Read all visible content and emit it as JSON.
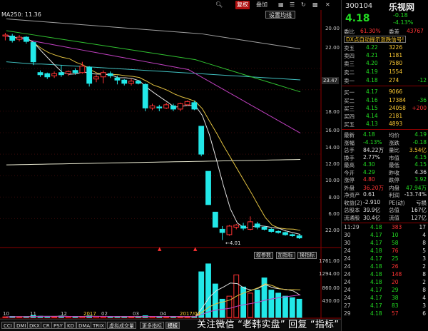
{
  "toolbar": {
    "search_icon": "search-icon",
    "fuquan": "复权",
    "diejia": "叠加",
    "chart_icon": "candle-chart-icon",
    "period_icon": "list-icon",
    "refresh_icon": "refresh-icon",
    "grid_icon": "grid-icon"
  },
  "ma_label": "MA250: 11.36",
  "dropdown_label": "设置均线",
  "price_tag": "23.47",
  "y_ticks": [
    "20.00",
    "18.00",
    "16.00",
    "14.00",
    "12.00",
    "10.00",
    "8.00",
    "6.00",
    "22.00"
  ],
  "arrow_label": "4.01",
  "subchart_buttons": [
    "叙参数",
    "加指标",
    "换指标"
  ],
  "vol_ticks": [
    "1761.00",
    "1294.00",
    "860.00",
    "430.00"
  ],
  "x_labels": [
    "10",
    "11",
    "12",
    "2017",
    "02",
    "03",
    "04",
    "2017/04"
  ],
  "tabs": [
    "CCI",
    "DMI",
    "DKX",
    "CR",
    "PSY",
    "KD",
    "DMA",
    "TRIX",
    "虚拟成交量",
    "更多指标",
    "模板"
  ],
  "watermark": "关注微信 “老韩实盘” 回复 “指标” 免费领",
  "quote": {
    "code": "300104",
    "logo": "乐视网",
    "price": "4.18",
    "change": "-0.18",
    "change_pct": "-4.13%",
    "ratio_label": "委比",
    "ratio_value": "61.30%",
    "diff_label": "委差",
    "diff_value": "43767",
    "dxx_label": "DX点自动提示涨跌信号!",
    "asks": [
      {
        "label": "卖五",
        "price": "4.22",
        "vol": "3226",
        "delta": ""
      },
      {
        "label": "卖四",
        "price": "4.21",
        "vol": "1181",
        "delta": ""
      },
      {
        "label": "卖三",
        "price": "4.20",
        "vol": "7580",
        "delta": ""
      },
      {
        "label": "卖二",
        "price": "4.19",
        "vol": "1554",
        "delta": ""
      },
      {
        "label": "卖一",
        "price": "4.18",
        "vol": "274",
        "delta": "-12"
      }
    ],
    "bids": [
      {
        "label": "买一",
        "price": "4.17",
        "vol": "9066",
        "delta": ""
      },
      {
        "label": "买二",
        "price": "4.16",
        "vol": "17384",
        "delta": "-36"
      },
      {
        "label": "买三",
        "price": "4.15",
        "vol": "24058",
        "delta": "+200"
      },
      {
        "label": "买四",
        "price": "4.14",
        "vol": "2181",
        "delta": ""
      },
      {
        "label": "买五",
        "price": "4.13",
        "vol": "4893",
        "delta": ""
      }
    ],
    "stats": [
      {
        "l1": "最新",
        "v1": "4.18",
        "l2": "均价",
        "v2": "4.19",
        "c1": "#22dd22",
        "c2": "#22dd22"
      },
      {
        "l1": "涨幅",
        "v1": "-4.13%",
        "l2": "涨跌",
        "v2": "-0.18",
        "c1": "#22dd22",
        "c2": "#22dd22"
      },
      {
        "l1": "总手",
        "v1": "84.22万",
        "l2": "量比",
        "v2": "3.54亿",
        "c1": "#e0e0e0",
        "c2": "#ffcc33"
      },
      {
        "l1": "换手",
        "v1": "2.77%",
        "l2": "市值",
        "v2": "4.15",
        "c1": "#e0e0e0",
        "c2": "#22dd22"
      },
      {
        "l1": "最高",
        "v1": "4.30",
        "l2": "最低",
        "v2": "4.15",
        "c1": "#22dd22",
        "c2": "#22dd22"
      },
      {
        "l1": "今开",
        "v1": "4.29",
        "l2": "昨收",
        "v2": "4.36",
        "c1": "#22dd22",
        "c2": "#e0e0e0"
      },
      {
        "l1": "涨停",
        "v1": "4.80",
        "l2": "跌停",
        "v2": "3.92",
        "c1": "#ff3333",
        "c2": "#22dd22"
      },
      {
        "l1": "外盘",
        "v1": "36.20万",
        "l2": "内盘",
        "v2": "47.94万",
        "c1": "#ff3333",
        "c2": "#22dd22"
      },
      {
        "l1": "净资产",
        "v1": "0.61",
        "l2": "利润",
        "v2": "-13.74%",
        "c1": "#e0e0e0",
        "c2": "#e0e0e0"
      },
      {
        "l1": "收益(2)",
        "v1": "-2.910",
        "l2": "PE(动)",
        "v2": "亏损",
        "c1": "#e0e0e0",
        "c2": "#e0e0e0"
      },
      {
        "l1": "总股本",
        "v1": "39.9亿",
        "l2": "总值",
        "v2": "167亿",
        "c1": "#e0e0e0",
        "c2": "#e0e0e0"
      },
      {
        "l1": "流通股",
        "v1": "30.4亿",
        "l2": "流值",
        "v2": "127亿",
        "c1": "#e0e0e0",
        "c2": "#e0e0e0"
      }
    ],
    "ticks": [
      {
        "time": "11:29",
        "price": "4.18",
        "vol": "383",
        "n": "17",
        "dir": "up"
      },
      {
        "time": "30",
        "price": "4.17",
        "vol": "10",
        "n": "4",
        "dir": "down"
      },
      {
        "time": "30",
        "price": "4.17",
        "vol": "58",
        "n": "8",
        "dir": "down"
      },
      {
        "time": "24",
        "price": "4.18",
        "vol": "76",
        "n": "5",
        "dir": "up"
      },
      {
        "time": "24",
        "price": "4.17",
        "vol": "25",
        "n": "3",
        "dir": "down"
      },
      {
        "time": "24",
        "price": "4.18",
        "vol": "26",
        "n": "2",
        "dir": "up"
      },
      {
        "time": "24",
        "price": "4.18",
        "vol": "148",
        "n": "8",
        "dir": "up"
      },
      {
        "time": "24",
        "price": "4.18",
        "vol": "20",
        "n": "2",
        "dir": "up"
      },
      {
        "time": "24",
        "price": "4.17",
        "vol": "29",
        "n": "8",
        "dir": "down"
      },
      {
        "time": "24",
        "price": "4.17",
        "vol": "38",
        "n": "4",
        "dir": "down"
      },
      {
        "time": "27",
        "price": "4.17",
        "vol": "83",
        "n": "3",
        "dir": "down"
      },
      {
        "time": "29",
        "price": "4.18",
        "vol": "57",
        "n": "6",
        "dir": "up"
      }
    ]
  },
  "chart_data": {
    "type": "candlestick",
    "candles": [
      [
        23.0,
        23.1,
        22.6,
        23.3
      ],
      [
        23.0,
        22.6,
        22.4,
        23.2
      ],
      [
        22.7,
        22.9,
        22.5,
        23.1
      ],
      [
        22.9,
        22.5,
        22.3,
        23.0
      ],
      [
        22.4,
        20.6,
        20.3,
        22.5
      ],
      [
        19.6,
        19.4,
        19.2,
        19.8
      ],
      [
        19.5,
        19.2,
        19.0,
        19.6
      ],
      [
        19.3,
        19.5,
        19.1,
        19.7
      ],
      [
        19.6,
        19.4,
        19.2,
        20.3
      ],
      [
        19.5,
        19.7,
        19.3,
        19.8
      ],
      [
        19.8,
        19.6,
        19.4,
        20.0
      ],
      [
        19.6,
        20.2,
        19.5,
        20.6
      ],
      [
        20.1,
        18.6,
        18.3,
        20.2
      ],
      [
        19.0,
        19.2,
        18.7,
        19.4
      ],
      [
        19.2,
        19.6,
        18.6,
        19.8
      ],
      [
        19.5,
        19.3,
        19.1,
        19.7
      ],
      [
        19.1,
        18.9,
        18.5,
        19.3
      ],
      [
        18.9,
        18.6,
        18.4,
        19.0
      ],
      [
        18.6,
        18.8,
        18.4,
        19.0
      ],
      [
        18.8,
        18.6,
        18.5,
        18.9
      ],
      [
        18.5,
        16.3,
        16.0,
        18.6
      ],
      [
        16.3,
        16.5,
        16.1,
        16.7
      ],
      [
        16.4,
        16.3,
        16.0,
        16.6
      ],
      [
        16.3,
        16.6,
        16.2,
        16.8
      ],
      [
        16.5,
        16.2,
        16.0,
        16.7
      ],
      [
        16.2,
        16.7,
        16.0,
        16.8
      ],
      [
        16.6,
        16.9,
        16.5,
        17.0
      ],
      [
        16.8,
        16.2,
        16.1,
        17.0
      ],
      [
        14.6,
        12.0,
        11.8,
        14.6
      ],
      [
        10.4,
        7.3,
        7.3,
        10.4
      ],
      [
        6.6,
        5.2,
        5.2,
        6.6
      ],
      [
        5.0,
        4.7,
        4.0,
        5.3
      ],
      [
        4.5,
        5.3,
        4.4,
        5.4
      ],
      [
        5.2,
        5.4,
        5.0,
        5.5
      ],
      [
        5.3,
        5.1,
        4.9,
        5.6
      ],
      [
        5.0,
        5.7,
        4.9,
        6.2
      ],
      [
        5.5,
        5.2,
        5.0,
        5.7
      ],
      [
        5.2,
        5.0,
        4.9,
        5.3
      ],
      [
        5.0,
        4.8,
        4.7,
        5.1
      ],
      [
        4.8,
        4.7,
        4.6,
        4.9
      ],
      [
        4.7,
        4.5,
        4.4,
        4.8
      ],
      [
        4.5,
        4.4,
        4.3,
        4.6
      ],
      [
        4.4,
        4.2,
        4.1,
        4.5
      ]
    ],
    "ylim": [
      3.5,
      24.5
    ],
    "volumes": [
      20,
      35,
      25,
      30,
      60,
      40,
      30,
      25,
      45,
      30,
      25,
      35,
      50,
      35,
      30,
      25,
      30,
      25,
      20,
      25,
      55,
      35,
      30,
      25,
      30,
      25,
      20,
      30,
      1500,
      1761,
      1100,
      600,
      700,
      1400,
      1000,
      800,
      900,
      1300,
      900,
      800,
      700,
      650,
      600
    ],
    "vol_ylim": [
      0,
      1900
    ]
  }
}
